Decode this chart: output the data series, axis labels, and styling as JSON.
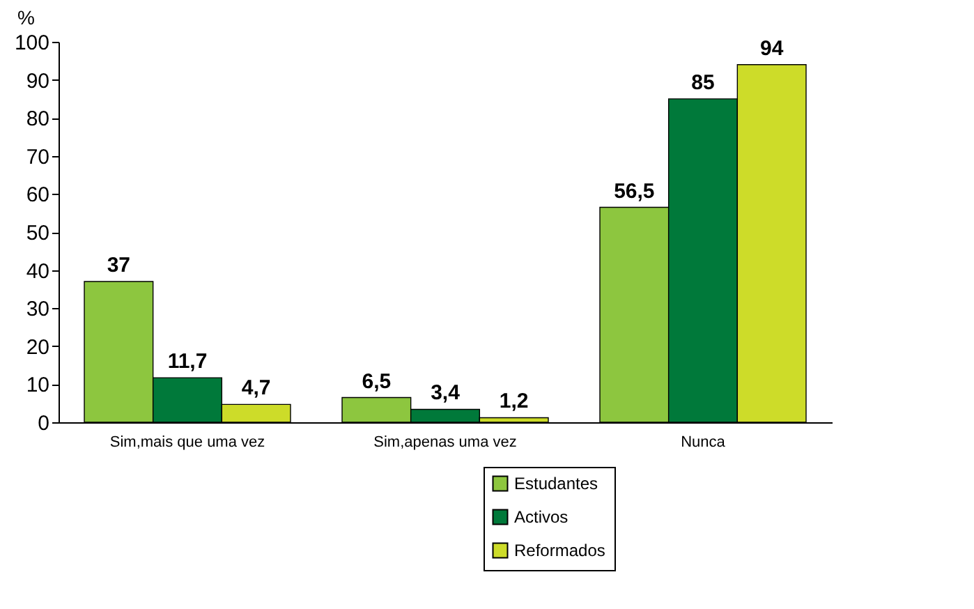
{
  "chart_data": {
    "type": "bar",
    "ylabel": "%",
    "categories": [
      "Sim,mais que uma vez",
      "Sim,apenas uma vez",
      "Nunca"
    ],
    "series": [
      {
        "name": "Estudantes",
        "color": "#8dc63f",
        "values": [
          37,
          6.5,
          56.5
        ],
        "value_labels": [
          "37",
          "6,5",
          "56,5"
        ]
      },
      {
        "name": "Activos",
        "color": "#00793a",
        "values": [
          11.7,
          3.4,
          85
        ],
        "value_labels": [
          "11,7",
          "3,4",
          "85"
        ]
      },
      {
        "name": "Reformados",
        "color": "#cddc29",
        "values": [
          4.7,
          1.2,
          94
        ],
        "value_labels": [
          "4,7",
          "1,2",
          "94"
        ]
      }
    ],
    "ylim": [
      0,
      100
    ],
    "yticks": [
      0,
      10,
      20,
      30,
      40,
      50,
      60,
      70,
      80,
      90,
      100
    ],
    "grid": false,
    "legend": "bottom"
  }
}
